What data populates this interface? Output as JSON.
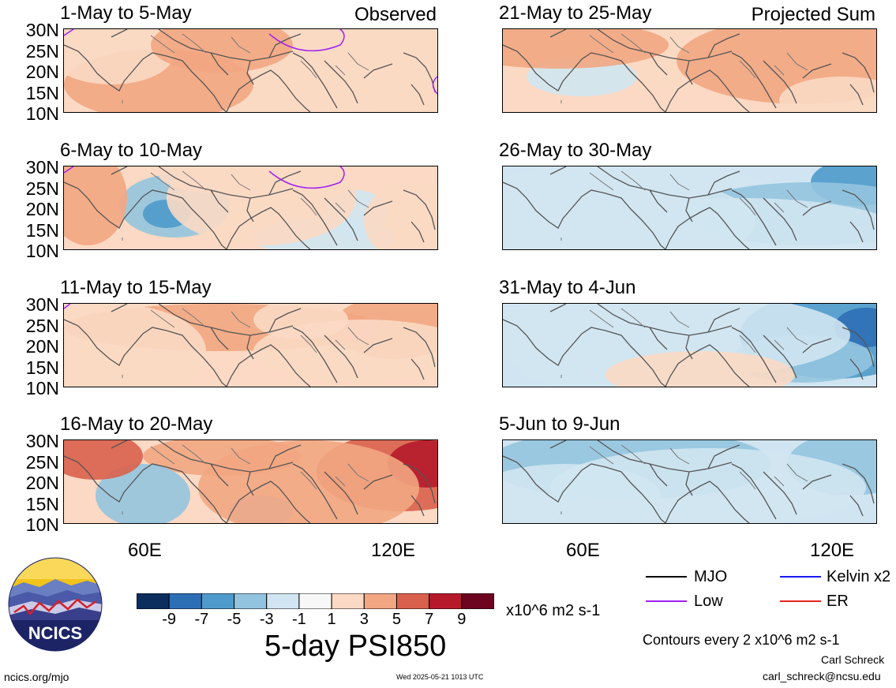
{
  "panels": [
    {
      "title": "1-May to 5-May",
      "label": "Observed",
      "pattern": "pos_a"
    },
    {
      "title": "6-May to 10-May",
      "label": "",
      "pattern": "mixed_a"
    },
    {
      "title": "11-May to 15-May",
      "label": "",
      "pattern": "pos_b"
    },
    {
      "title": "16-May to 20-May",
      "label": "",
      "pattern": "pos_c"
    },
    {
      "title": "21-May to 25-May",
      "label": "Projected Sum",
      "pattern": "pos_d"
    },
    {
      "title": "26-May to 30-May",
      "label": "",
      "pattern": "neg_a"
    },
    {
      "title": "31-May to 4-Jun",
      "label": "",
      "pattern": "neg_b"
    },
    {
      "title": "5-Jun to 9-Jun",
      "label": "",
      "pattern": "neg_c"
    }
  ],
  "lat_labels": [
    "30N",
    "25N",
    "20N",
    "15N",
    "10N"
  ],
  "lon_labels": [
    "60E",
    "120E"
  ],
  "colorbar": {
    "colors": [
      "#0b2e5f",
      "#2c6fb5",
      "#4e9acb",
      "#93c4df",
      "#d0e5f1",
      "#f7f7f7",
      "#fbd9c4",
      "#f2a682",
      "#d9604c",
      "#b5192b",
      "#6d0420"
    ],
    "ticks": [
      "-9",
      "-7",
      "-5",
      "-3",
      "-1",
      "1",
      "3",
      "5",
      "7",
      "9"
    ],
    "units": "x10^6 m2 s-1"
  },
  "main_title": "5-day PSI850",
  "legend": [
    {
      "name": "MJO",
      "color": "#000000"
    },
    {
      "name": "Kelvin x2",
      "color": "#1a1aff"
    },
    {
      "name": "Low",
      "color": "#a020f0"
    },
    {
      "name": "ER",
      "color": "#e8241c"
    }
  ],
  "contours_note": "Contours every 2 x10^6 m2 s-1",
  "author": "Carl Schreck",
  "email": "carl_schreck@ncsu.edu",
  "site": "ncics.org/mjo",
  "timestamp": "Wed 2025-05-21 1013 UTC",
  "logo_text": "NCICS"
}
